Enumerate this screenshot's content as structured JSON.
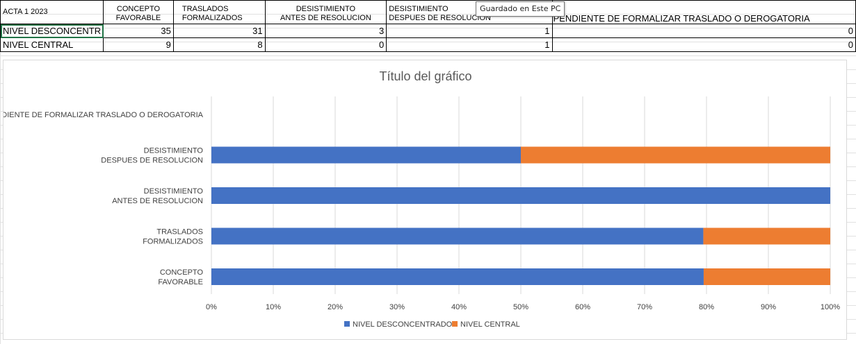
{
  "tooltip": "Guardado en Este PC",
  "sheet": {
    "corner": "ACTA 1 2023",
    "headers": [
      [
        "CONCEPTO",
        "FAVORABLE"
      ],
      [
        "TRASLADOS",
        "FORMALIZADOS"
      ],
      [
        "DESISTIMIENTO",
        "ANTES DE RESOLUCION"
      ],
      [
        "DESISTIMIENTO",
        "DESPUES DE RESOLUCION"
      ],
      [
        "PENDIENTE DE FORMALIZAR TRASLADO O DEROGATORIA"
      ]
    ],
    "rows": [
      {
        "label": "NIVEL DESCONCENTR",
        "values": [
          "35",
          "31",
          "3",
          "1",
          "0"
        ]
      },
      {
        "label": "NIVEL CENTRAL",
        "values": [
          "9",
          "8",
          "0",
          "1",
          "0"
        ]
      }
    ]
  },
  "chart_data": {
    "type": "bar",
    "orientation": "horizontal",
    "stacked": "100%",
    "title": "Título del gráfico",
    "categories": [
      [
        "CONCEPTO",
        "FAVORABLE"
      ],
      [
        "TRASLADOS",
        "FORMALIZADOS"
      ],
      [
        "DESISTIMIENTO",
        "ANTES DE RESOLUCION"
      ],
      [
        "DESISTIMIENTO",
        "DESPUES DE RESOLUCION"
      ],
      [
        "PENDIENTE DE FORMALIZAR TRASLADO O DEROGATORIA"
      ]
    ],
    "series": [
      {
        "name": "NIVEL DESCONCENTRADO",
        "color": "#4472c4",
        "values": [
          35,
          31,
          3,
          1,
          0
        ]
      },
      {
        "name": "NIVEL CENTRAL",
        "color": "#ed7d31",
        "values": [
          9,
          8,
          0,
          1,
          0
        ]
      }
    ],
    "ticks": [
      "0%",
      "10%",
      "20%",
      "30%",
      "40%",
      "50%",
      "60%",
      "70%",
      "80%",
      "90%",
      "100%"
    ],
    "xlim": [
      0,
      100
    ],
    "grid": true,
    "legend": "bottom"
  }
}
